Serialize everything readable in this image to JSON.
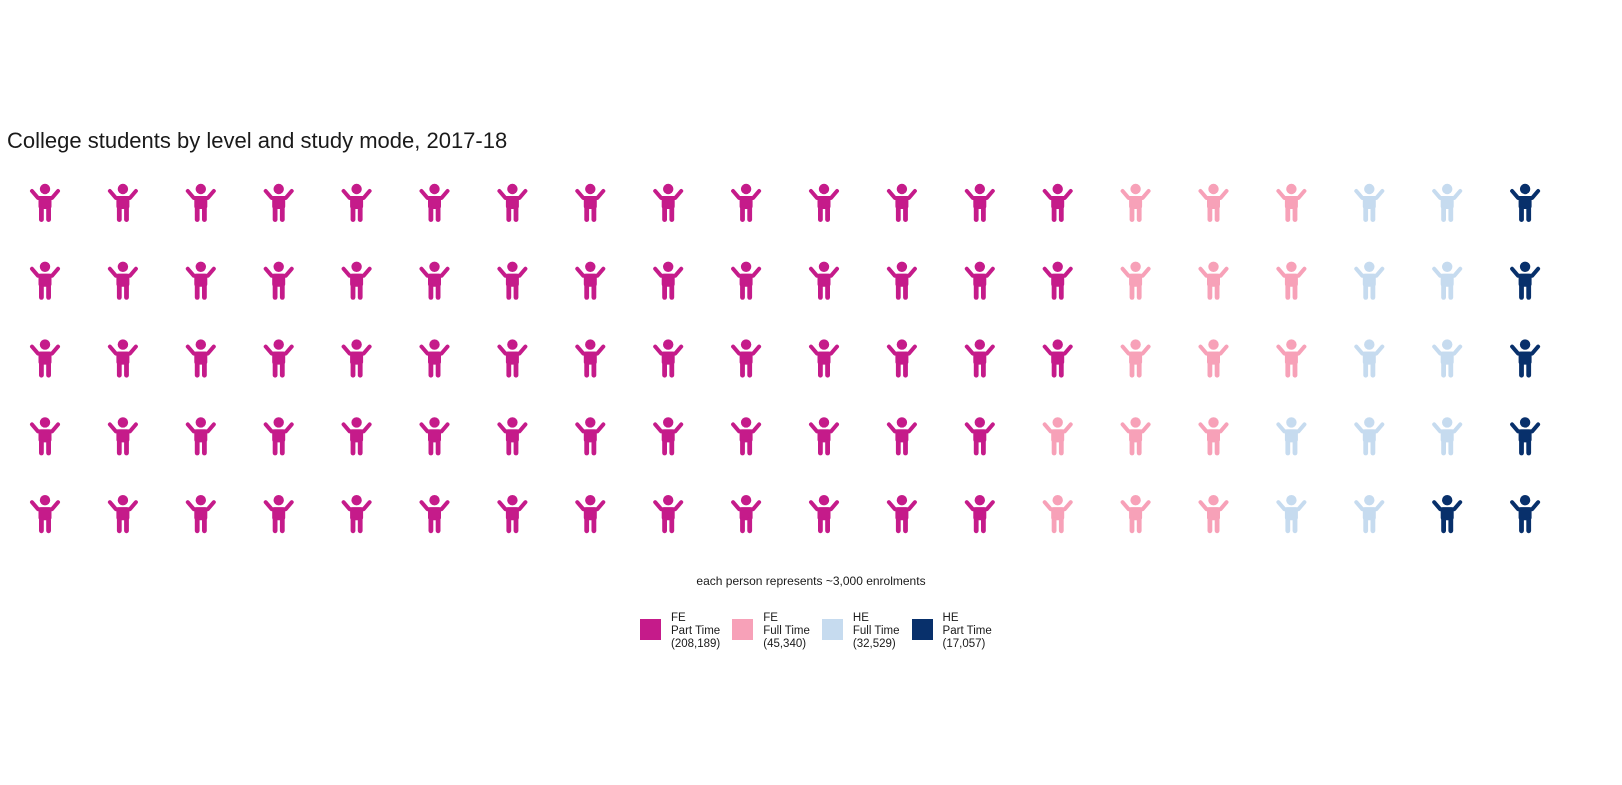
{
  "chart_data": {
    "type": "waffle",
    "title": "College students by level and study mode, 2017-18",
    "caption": "each person represents ~3,000 enrolments",
    "rows": 5,
    "columns": 20,
    "legend_position": "bottom",
    "icon": "person-arms-raised-icon",
    "series": [
      {
        "level": "FE",
        "mode": "Part Time",
        "count_label": "(208,189)",
        "value": 208189,
        "icons": 68,
        "color": "#c51b8a"
      },
      {
        "level": "FE",
        "mode": "Full Time",
        "count_label": "(45,340)",
        "value": 45340,
        "icons": 15,
        "color": "#f7a1b8"
      },
      {
        "level": "HE",
        "mode": "Full Time",
        "count_label": "(32,529)",
        "value": 32529,
        "icons": 11,
        "color": "#c6dbef"
      },
      {
        "level": "HE",
        "mode": "Part Time",
        "count_label": "(17,057)",
        "value": 17057,
        "icons": 6,
        "color": "#08306b"
      }
    ]
  }
}
